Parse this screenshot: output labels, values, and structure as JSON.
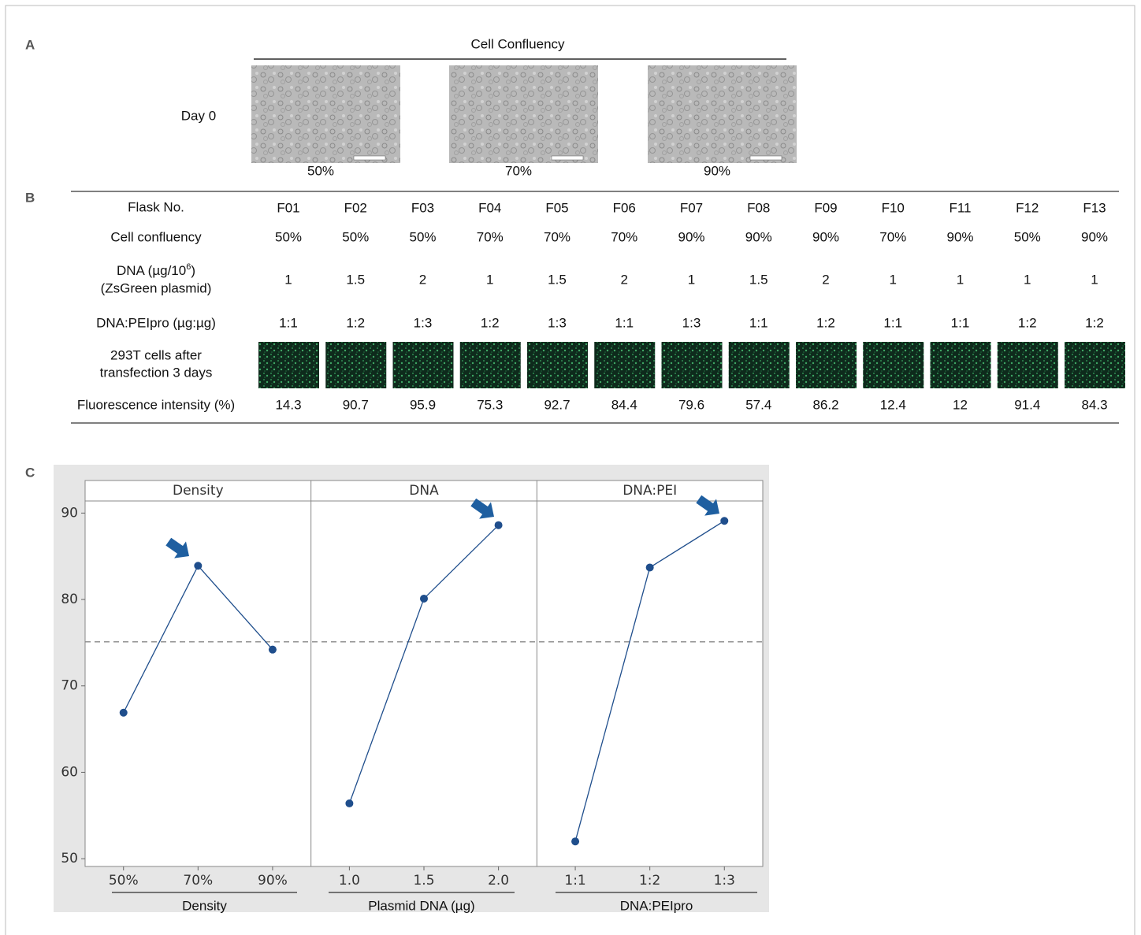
{
  "panel_a": {
    "label": "A",
    "title": "Cell Confluency",
    "row_label": "Day 0",
    "captions": [
      "50%",
      "70%",
      "90%"
    ]
  },
  "panel_b": {
    "label": "B",
    "table": {
      "header": {
        "label": "Flask No.",
        "cells": [
          "F01",
          "F02",
          "F03",
          "F04",
          "F05",
          "F06",
          "F07",
          "F08",
          "F09",
          "F10",
          "F11",
          "F12",
          "F13"
        ]
      },
      "rows": [
        {
          "label": [
            "Cell confluency"
          ],
          "cells": [
            "50%",
            "50%",
            "50%",
            "70%",
            "70%",
            "70%",
            "90%",
            "90%",
            "90%",
            "70%",
            "90%",
            "50%",
            "90%"
          ]
        },
        {
          "label": [
            "DNA (µg/10",
            "(ZsGreen plasmid)"
          ],
          "label_superscript": "6",
          "label_suffix": ")",
          "cells": [
            1,
            1.5,
            2,
            1,
            1.5,
            2,
            1,
            1.5,
            2,
            1,
            1,
            1,
            1
          ]
        },
        {
          "label": [
            "DNA:PEIpro (µg:µg)"
          ],
          "cells": [
            "1:1",
            "1:2",
            "1:3",
            "1:2",
            "1:3",
            "1:1",
            "1:3",
            "1:1",
            "1:2",
            "1:1",
            "1:1",
            "1:2",
            "1:2"
          ]
        },
        {
          "label": [
            "293T cells after",
            "transfection 3 days"
          ]
        },
        {
          "label": [
            "Fluorescence intensity (%)"
          ],
          "cells": [
            14.3,
            90.7,
            95.9,
            75.3,
            92.7,
            84.4,
            79.6,
            57.4,
            86.2,
            12.4,
            12,
            91.4,
            84.3
          ]
        }
      ]
    }
  },
  "panel_c_label": "C",
  "chart_data": {
    "type": "line",
    "color": "#1f4e8c",
    "ylim": [
      49.1,
      91.4
    ],
    "yticks": [
      50,
      60,
      70,
      80,
      90
    ],
    "reference_line": 75.1,
    "panels": [
      {
        "title": "Density",
        "xlabel": "Density",
        "categories": [
          "50%",
          "70%",
          "90%"
        ],
        "values": [
          66.9,
          83.9,
          74.2
        ]
      },
      {
        "title": "DNA",
        "xlabel": "Plasmid DNA (µg)",
        "categories": [
          "1.0",
          "1.5",
          "2.0"
        ],
        "values": [
          56.4,
          80.1,
          88.6
        ]
      },
      {
        "title": "DNA:PEI",
        "xlabel": "DNA:PEIpro",
        "categories": [
          "1:1",
          "1:2",
          "1:3"
        ],
        "values": [
          52.0,
          83.7,
          89.1
        ]
      }
    ]
  }
}
